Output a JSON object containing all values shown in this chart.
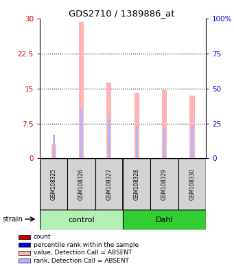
{
  "title": "GDS2710 / 1389886_at",
  "samples": [
    "GSM108325",
    "GSM108326",
    "GSM108327",
    "GSM108328",
    "GSM108329",
    "GSM108330"
  ],
  "group_colors": [
    "#b3f0b3",
    "#33cc33"
  ],
  "bar_values": [
    3.0,
    29.3,
    16.3,
    14.0,
    14.7,
    13.5
  ],
  "rank_values": [
    5.0,
    10.5,
    8.5,
    7.0,
    6.5,
    7.2
  ],
  "bar_color_absent": "#ffb3b3",
  "rank_color_absent": "#b3b3ff",
  "ylim_left": [
    0,
    30
  ],
  "ylim_right": [
    0,
    100
  ],
  "yticks_left": [
    0,
    7.5,
    15,
    22.5,
    30
  ],
  "ytick_labels_left": [
    "0",
    "7.5",
    "15",
    "22.5",
    "30"
  ],
  "yticks_right": [
    0,
    25,
    50,
    75,
    100
  ],
  "ytick_labels_right": [
    "0",
    "25",
    "50",
    "75",
    "100%"
  ],
  "left_axis_color": "#cc0000",
  "right_axis_color": "#0000cc",
  "dotted_yticks": [
    7.5,
    15,
    22.5
  ],
  "sample_area_color": "#d3d3d3",
  "legend_items": [
    {
      "color": "#cc0000",
      "label": "count"
    },
    {
      "color": "#0000cc",
      "label": "percentile rank within the sample"
    },
    {
      "color": "#ffb3b3",
      "label": "value, Detection Call = ABSENT"
    },
    {
      "color": "#b3b3ff",
      "label": "rank, Detection Call = ABSENT"
    }
  ]
}
